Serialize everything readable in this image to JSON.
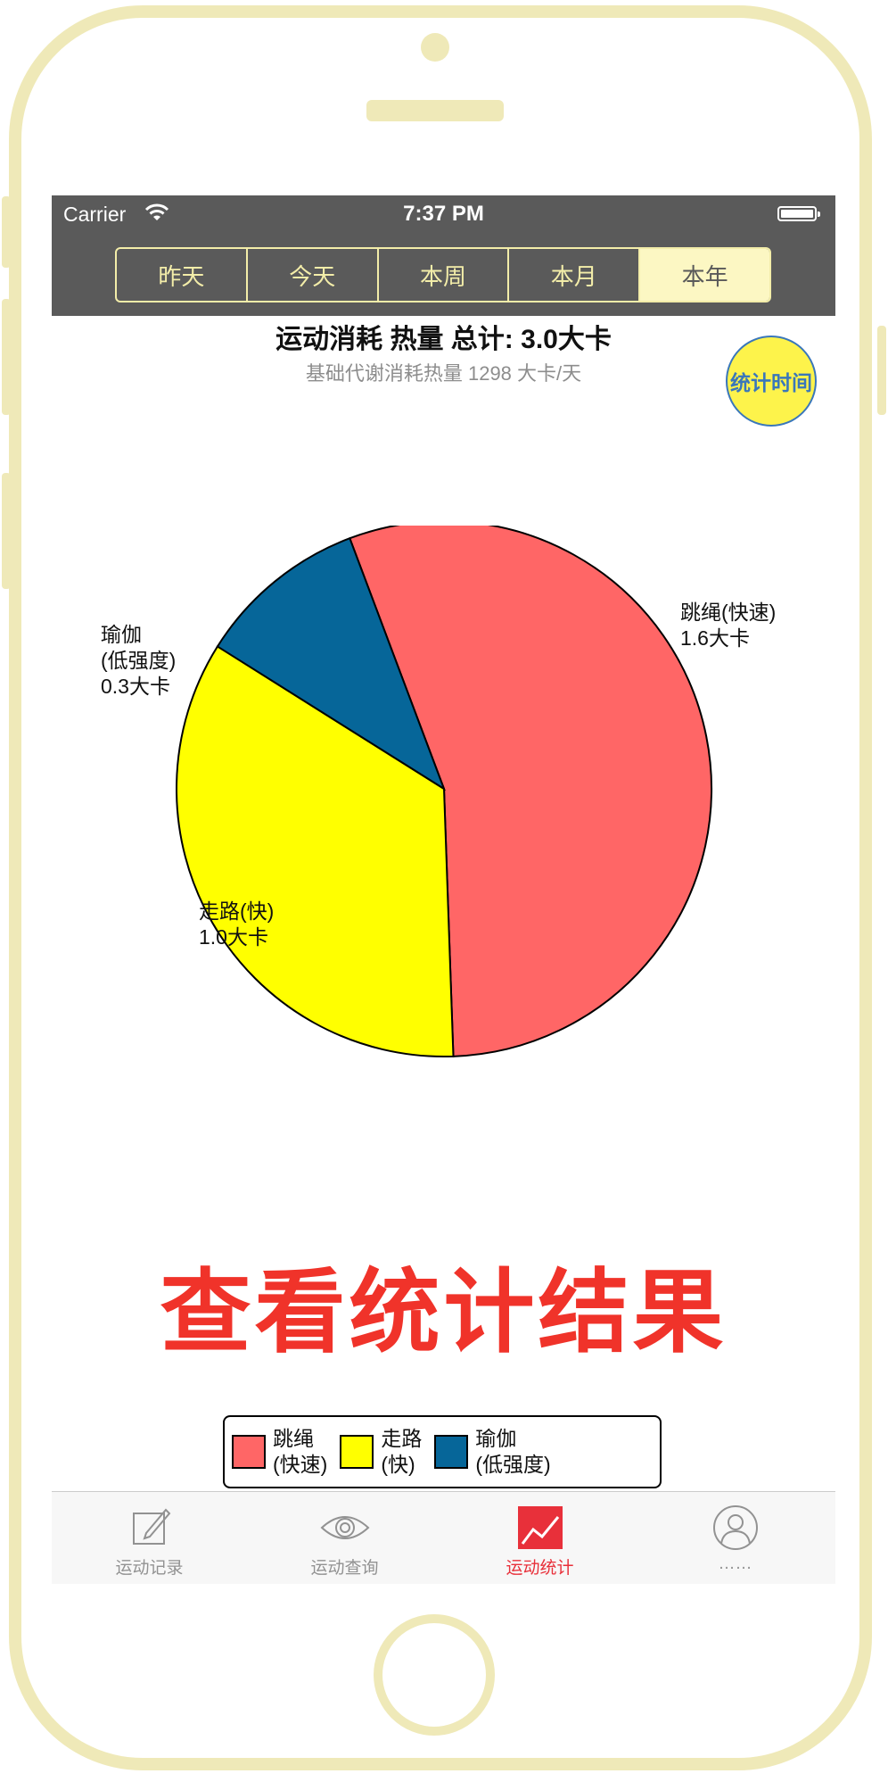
{
  "status_bar": {
    "carrier": "Carrier",
    "time": "7:37 PM"
  },
  "segments": [
    {
      "label": "昨天",
      "selected": false
    },
    {
      "label": "今天",
      "selected": false
    },
    {
      "label": "本周",
      "selected": false
    },
    {
      "label": "本月",
      "selected": false
    },
    {
      "label": "本年",
      "selected": true
    }
  ],
  "summary": {
    "title_prefix": "运动消耗 热量 总计: ",
    "title_value": "3.0",
    "title_unit": "大卡",
    "subtitle": "基础代谢消耗热量 1298 大卡/天"
  },
  "stat_time_button": "统计时间",
  "chart_data": {
    "type": "pie",
    "unit": "大卡",
    "slices": [
      {
        "label": "跳绳(快速)",
        "value": 1.6,
        "value_label": "1.6大卡",
        "color": "#ff6666"
      },
      {
        "label": "走路(快)",
        "value": 1.0,
        "value_label": "1.0大卡",
        "color": "#ffff00"
      },
      {
        "label": "瑜伽(低强度)",
        "value": 0.3,
        "value_label": "0.3大卡",
        "color": "#066699"
      }
    ],
    "legend": [
      "跳绳\n(快速)",
      "走路\n(快)",
      "瑜伽\n(低强度)"
    ],
    "legend_placement": "bottom"
  },
  "caption": "查看统计结果",
  "tabs": [
    {
      "label": "运动记录",
      "icon": "edit-icon",
      "active": false
    },
    {
      "label": "运动查询",
      "icon": "eye-icon",
      "active": false
    },
    {
      "label": "运动统计",
      "icon": "chart-icon",
      "active": true
    },
    {
      "label": "……",
      "icon": "user-icon",
      "active": false
    }
  ],
  "colors": {
    "frame": "#efe9b8",
    "accent": "#e8303a",
    "topbar": "#5a5a5a",
    "segment_selected": "#fcf7c3"
  }
}
